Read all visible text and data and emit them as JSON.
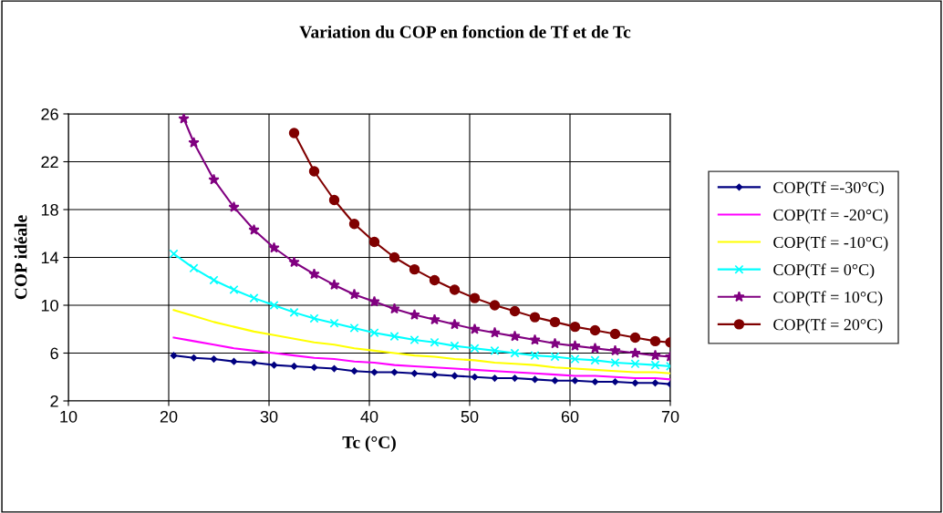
{
  "chart_data": {
    "type": "line",
    "title": "Variation du COP en fonction de Tf et de Tc",
    "xlabel": "Tc (°C)",
    "ylabel": "COP idéale",
    "x": [
      20.5,
      22.5,
      24.5,
      26.5,
      28.5,
      30.5,
      32.5,
      34.5,
      36.5,
      38.5,
      40.5,
      42.5,
      44.5,
      46.5,
      48.5,
      50.5,
      52.5,
      54.5,
      56.5,
      58.5,
      60.5,
      62.5,
      64.5,
      66.5,
      68.5,
      70
    ],
    "series": [
      {
        "name": "COP(Tf =-30°C)",
        "color": "#000080",
        "marker": "diamond",
        "values": [
          5.8,
          5.6,
          5.5,
          5.3,
          5.2,
          5.0,
          4.9,
          4.8,
          4.7,
          4.5,
          4.4,
          4.4,
          4.3,
          4.2,
          4.1,
          4.0,
          3.9,
          3.9,
          3.8,
          3.7,
          3.7,
          3.6,
          3.6,
          3.5,
          3.5,
          3.4
        ]
      },
      {
        "name": "COP(Tf = -20°C)",
        "color": "#ff00ff",
        "marker": "none",
        "values": [
          7.3,
          7.0,
          6.7,
          6.4,
          6.2,
          6.0,
          5.8,
          5.6,
          5.5,
          5.3,
          5.2,
          5.0,
          4.9,
          4.8,
          4.7,
          4.6,
          4.5,
          4.4,
          4.3,
          4.2,
          4.1,
          4.1,
          4.0,
          3.9,
          3.9,
          3.8
        ]
      },
      {
        "name": "COP(Tf = -10°C)",
        "color": "#ffff00",
        "marker": "none",
        "values": [
          9.6,
          9.1,
          8.6,
          8.2,
          7.8,
          7.5,
          7.2,
          6.9,
          6.7,
          6.4,
          6.2,
          6.0,
          5.8,
          5.7,
          5.5,
          5.4,
          5.2,
          5.1,
          5.0,
          4.8,
          4.7,
          4.6,
          4.5,
          4.4,
          4.4,
          4.3
        ]
      },
      {
        "name": "COP(Tf = 0°C)",
        "color": "#00ffff",
        "marker": "cross",
        "values": [
          14.3,
          13.1,
          12.1,
          11.3,
          10.6,
          10.0,
          9.4,
          8.9,
          8.5,
          8.1,
          7.7,
          7.4,
          7.1,
          6.9,
          6.6,
          6.4,
          6.2,
          6.0,
          5.8,
          5.7,
          5.5,
          5.4,
          5.2,
          5.1,
          5.0,
          4.9
        ]
      },
      {
        "name": "COP(Tf = 10°C)",
        "color": "#800080",
        "marker": "star",
        "x": [
          21.5,
          22.5,
          24.5,
          26.5,
          28.5,
          30.5,
          32.5,
          34.5,
          36.5,
          38.5,
          40.5,
          42.5,
          44.5,
          46.5,
          48.5,
          50.5,
          52.5,
          54.5,
          56.5,
          58.5,
          60.5,
          62.5,
          64.5,
          66.5,
          68.5,
          70
        ],
        "values": [
          25.6,
          23.6,
          20.5,
          18.2,
          16.3,
          14.8,
          13.6,
          12.6,
          11.7,
          10.9,
          10.3,
          9.7,
          9.2,
          8.8,
          8.4,
          8.0,
          7.7,
          7.4,
          7.1,
          6.8,
          6.6,
          6.4,
          6.2,
          6.0,
          5.8,
          5.7
        ]
      },
      {
        "name": "COP(Tf = 20°C)",
        "color": "#800000",
        "marker": "circle",
        "x": [
          32.5,
          34.5,
          36.5,
          38.5,
          40.5,
          42.5,
          44.5,
          46.5,
          48.5,
          50.5,
          52.5,
          54.5,
          56.5,
          58.5,
          60.5,
          62.5,
          64.5,
          66.5,
          68.5,
          70
        ],
        "values": [
          24.4,
          21.2,
          18.8,
          16.8,
          15.3,
          14.0,
          13.0,
          12.1,
          11.3,
          10.6,
          10.0,
          9.5,
          9.0,
          8.6,
          8.2,
          7.9,
          7.6,
          7.3,
          7.0,
          6.9
        ]
      }
    ],
    "xlim": [
      10,
      70
    ],
    "xticks": [
      10,
      20,
      30,
      40,
      50,
      60,
      70
    ],
    "ylim": [
      2,
      26
    ],
    "yticks": [
      2,
      6,
      10,
      14,
      18,
      22,
      26
    ],
    "grid": true,
    "legend": "right",
    "line_style": "solid"
  }
}
